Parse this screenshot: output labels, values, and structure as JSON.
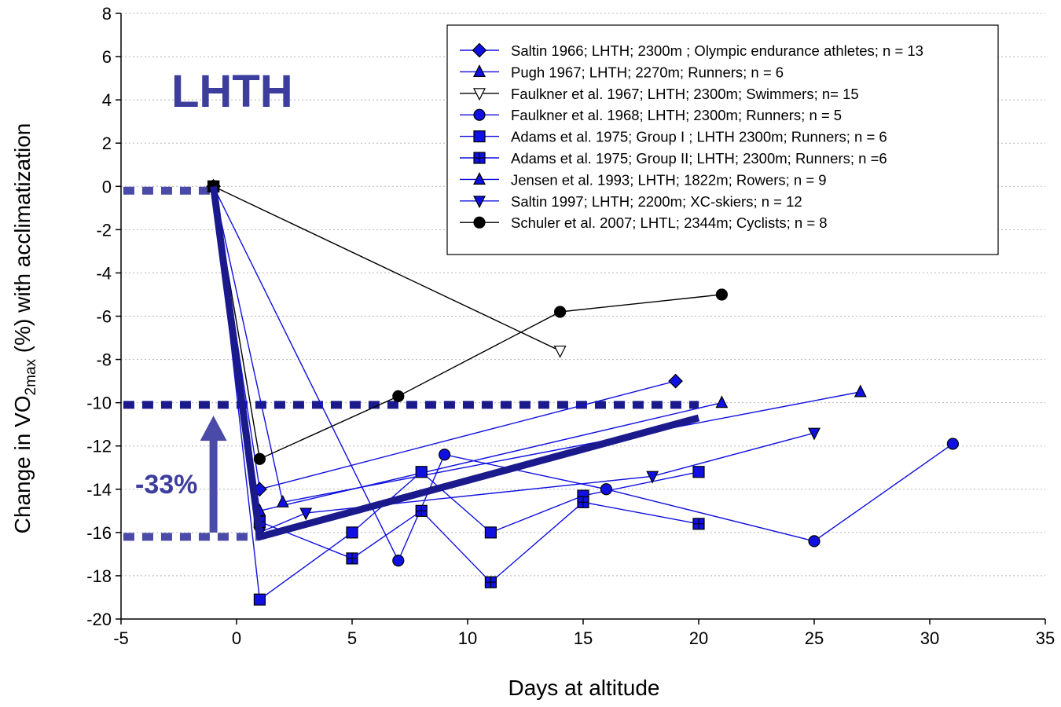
{
  "chart_data": {
    "type": "line",
    "xlabel": "Days at altitude",
    "ylabel": {
      "prefix": "Change in VO",
      "sub": "2max",
      "suffix": " (%) with acclimatization"
    },
    "xlim": [
      -5,
      35
    ],
    "ylim": [
      -20,
      8
    ],
    "x_ticks": [
      -5,
      0,
      5,
      10,
      15,
      20,
      25,
      30,
      35
    ],
    "y_ticks": [
      8,
      6,
      4,
      2,
      0,
      -2,
      -4,
      -6,
      -8,
      -10,
      -12,
      -14,
      -16,
      -18,
      -20
    ],
    "grid": "horizontal dotted",
    "legend_position": "top-right",
    "annotation_title": "LHTH",
    "annotation_change": "-33%",
    "colors": {
      "blue_series": "#1010e0",
      "black_series": "#000000",
      "trend": "#1a1a8c",
      "reference_lines": "#1a1a8c",
      "bracket": "#4a4aa8",
      "annotation_text": "#3d3d9e"
    },
    "series": [
      {
        "name": "Saltin 1966; LHTH; 2300m ; Olympic endurance athletes; n = 13",
        "marker": "diamond",
        "color": "#1010e0",
        "points": [
          [
            -1,
            0
          ],
          [
            1,
            -14
          ],
          [
            19,
            -9
          ]
        ]
      },
      {
        "name": "Pugh 1967; LHTH; 2270m; Runners; n = 6",
        "marker": "triangle",
        "color": "#1010e0",
        "points": [
          [
            -1,
            0
          ],
          [
            2,
            -14.6
          ],
          [
            27,
            -9.5
          ]
        ]
      },
      {
        "name": "Faulkner et al. 1967; LHTH; 2300m; Swimmers; n= 15",
        "marker": "triangle-down-open",
        "color": "#000000",
        "points": [
          [
            -1,
            0
          ],
          [
            14,
            -7.6
          ]
        ]
      },
      {
        "name": "Faulkner et al. 1968; LHTH; 2300m; Runners; n = 5",
        "marker": "circle",
        "color": "#1010e0",
        "points": [
          [
            -1,
            0
          ],
          [
            7,
            -17.3
          ],
          [
            9,
            -12.4
          ],
          [
            16,
            -14
          ],
          [
            25,
            -16.4
          ],
          [
            31,
            -11.9
          ]
        ]
      },
      {
        "name": "Adams et al. 1975; Group I ; LHTH 2300m; Runners; n = 6",
        "marker": "square",
        "color": "#1010e0",
        "points": [
          [
            -1,
            0
          ],
          [
            1,
            -19.1
          ],
          [
            5,
            -16
          ],
          [
            8,
            -13.2
          ],
          [
            11,
            -16
          ],
          [
            15,
            -14.3
          ],
          [
            20,
            -13.2
          ]
        ]
      },
      {
        "name": "Adams et al. 1975; Group II; LHTH; 2300m; Runners; n =6",
        "marker": "square-plus",
        "color": "#1010e0",
        "points": [
          [
            -1,
            0
          ],
          [
            1,
            -15.5
          ],
          [
            5,
            -17.2
          ],
          [
            8,
            -15
          ],
          [
            11,
            -18.3
          ],
          [
            15,
            -14.6
          ],
          [
            20,
            -15.6
          ]
        ]
      },
      {
        "name": "Jensen et al. 1993; LHTH; 1822m; Rowers; n = 9",
        "marker": "triangle",
        "color": "#1010e0",
        "points": [
          [
            -1,
            0
          ],
          [
            1,
            -15
          ],
          [
            21,
            -10
          ]
        ]
      },
      {
        "name": "Saltin 1997; LHTH; 2200m; XC-skiers; n = 12",
        "marker": "triangle-down",
        "color": "#1010e0",
        "points": [
          [
            -1,
            0
          ],
          [
            1,
            -16
          ],
          [
            3,
            -15.1
          ],
          [
            18,
            -13.4
          ],
          [
            25,
            -11.4
          ]
        ]
      },
      {
        "name": "Schuler et al. 2007; LHTL; 2344m; Cyclists; n = 8",
        "marker": "circle",
        "color": "#000000",
        "points": [
          [
            -1,
            0
          ],
          [
            1,
            -12.6
          ],
          [
            7,
            -9.7
          ],
          [
            14,
            -5.8
          ],
          [
            21,
            -5
          ]
        ]
      }
    ],
    "trend_line": [
      [
        -1,
        0
      ],
      [
        1,
        -16.2
      ],
      [
        20,
        -10.7
      ]
    ],
    "reference_levels": [
      {
        "y": -0.2,
        "x_from": -4.9,
        "x_to": -1,
        "color": "#4a4aa8"
      },
      {
        "y": -10.1,
        "x_from": -4.9,
        "x_to": 20,
        "color": "#1a1a8c"
      },
      {
        "y": -16.2,
        "x_from": -4.9,
        "x_to": 1,
        "color": "#4a4aa8"
      }
    ],
    "arrow": {
      "x": -1,
      "from_y": -16,
      "to_y": -10.6
    }
  }
}
